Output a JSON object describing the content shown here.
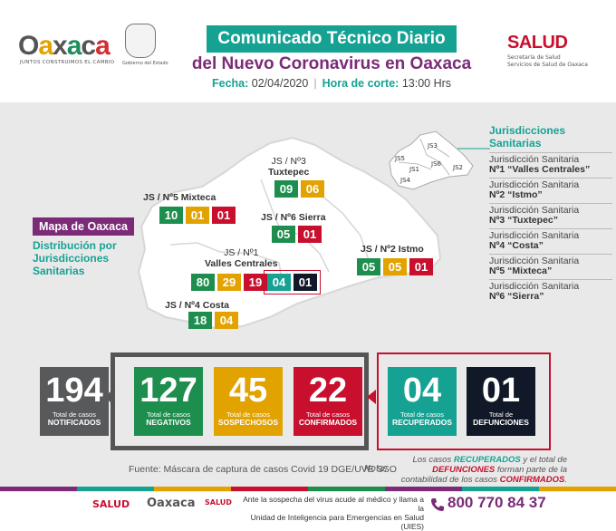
{
  "header": {
    "brand_left": {
      "pre": "O",
      "a1": "a",
      "mid": "x",
      "a2": "a",
      "c": "c",
      "a3": "a"
    },
    "brand_tagline": "JUNTOS CONSTRUIMOS EL CAMBIO",
    "crest_caption": "Gobierno del Estado",
    "title_line1": "Comunicado Técnico Diario",
    "title_line2": "del Nuevo Coronavirus en Oaxaca",
    "fecha_label": "Fecha:",
    "fecha_value": "02/04/2020",
    "hora_label": "Hora de corte:",
    "hora_value": "13:00 Hrs",
    "salud": "SALUD",
    "salud_sub1": "Secretaría de Salud",
    "salud_sub2": "Servicios de Salud de Oaxaca"
  },
  "map_info": {
    "box_title": "Mapa de Oaxaca",
    "subtitle_1": "Distribución por",
    "subtitle_2": "Jurisdicciones",
    "subtitle_3": "Sanitarias"
  },
  "jurisdictions_map": [
    {
      "key": "tuxtepec",
      "line1": "JS / Nº3",
      "line2": "Tuxtepec",
      "values": [
        "09",
        "06"
      ]
    },
    {
      "key": "mixteca",
      "line1": "JS / Nº5 Mixteca",
      "line2": "",
      "values": [
        "10",
        "01",
        "01"
      ]
    },
    {
      "key": "sierra",
      "line1": "JS / Nº6 Sierra",
      "line2": "",
      "values": [
        "05",
        "01"
      ]
    },
    {
      "key": "valles",
      "line1": "JS / Nº1",
      "line2": "Valles Centrales",
      "values": [
        "80",
        "29",
        "19"
      ],
      "extra": [
        "04",
        "01"
      ]
    },
    {
      "key": "istmo",
      "line1": "JS / Nº2 Istmo",
      "line2": "",
      "values": [
        "05",
        "05",
        "01"
      ]
    },
    {
      "key": "costa",
      "line1": "JS / Nº4 Costa",
      "line2": "",
      "values": [
        "18",
        "04"
      ]
    }
  ],
  "mini_map_labels": [
    "JS3",
    "JS5",
    "JS1",
    "JS6",
    "JS2",
    "JS4"
  ],
  "legend": {
    "title_1": "Jurisdicciones",
    "title_2": "Sanitarias",
    "items": [
      {
        "l1": "Jurisdicción Sanitaria",
        "l2": "Nº1 “Valles Centrales”"
      },
      {
        "l1": "Jurisdicción Sanitaria",
        "l2": "Nº2 “Istmo”"
      },
      {
        "l1": "Jurisdicción Sanitaria",
        "l2": "Nº3 “Tuxtepec”"
      },
      {
        "l1": "Jurisdicción Sanitaria",
        "l2": "Nº4 “Costa”"
      },
      {
        "l1": "Jurisdicción Sanitaria",
        "l2": "Nº5 “Mixteca”"
      },
      {
        "l1": "Jurisdicción Sanitaria",
        "l2": "Nº6 “Sierra”"
      }
    ]
  },
  "stats": [
    {
      "num": "194",
      "l1": "Total de casos",
      "l2": "NOTIFICADOS",
      "color": "#58595b"
    },
    {
      "num": "127",
      "l1": "Total de casos",
      "l2": "NEGATIVOS",
      "color": "#1e8e4e"
    },
    {
      "num": "45",
      "l1": "Total de casos",
      "l2": "SOSPECHOSOS",
      "color": "#e2a200"
    },
    {
      "num": "22",
      "l1": "Total de casos",
      "l2": "CONFIRMADOS",
      "color": "#c8102e"
    },
    {
      "num": "04",
      "l1": "Total de casos",
      "l2": "RECUPERADOS",
      "color": "#16a293"
    },
    {
      "num": "01",
      "l1": "Total de",
      "l2": "DEFUNCIONES",
      "color": "#111827"
    }
  ],
  "fuente": "Fuente: Máscara de captura de casos Covid 19 DGE/UVE SSO",
  "nota": {
    "label": "Nota:",
    "p1": "Los casos ",
    "recuperados": "RECUPERADOS",
    "p2": " y el total de",
    "defunciones": "DEFUNCIONES",
    "p3": " forman parte de la",
    "p4": "contabilidad de los casos ",
    "confirmados": "CONFIRMADOS",
    "p5": "."
  },
  "footer": {
    "salud": "SALUD",
    "oaxaca": "Oaxaca",
    "salud2": "SALUD",
    "text_1": "Ante la sospecha del virus acude al médico y llama a la",
    "text_2": "Unidad de Inteligencia para Emergencias en Salud (UIES)",
    "phone": "800 770 84 37"
  },
  "colors": {
    "teal": "#16a293",
    "purple": "#7b2b78",
    "green": "#1e8e4e",
    "yellow": "#e2a200",
    "red": "#c8102e",
    "dark": "#111827",
    "gray": "#58595b"
  }
}
